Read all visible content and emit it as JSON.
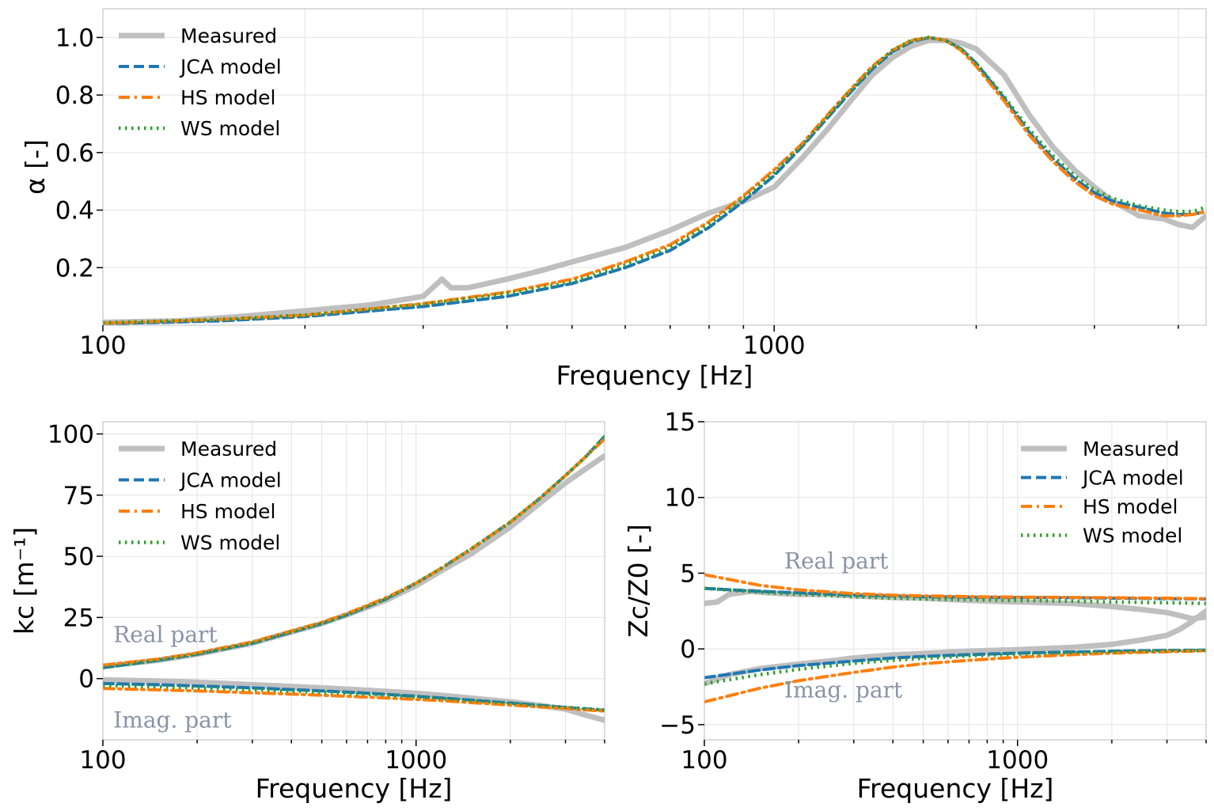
{
  "colors": {
    "measured": "#bfbfbf",
    "jca": "#1f77b4",
    "hs": "#ff7f0e",
    "ws": "#2ca02c",
    "annotation": "#8a94a6"
  },
  "legend": [
    "Measured",
    "JCA model",
    "HS model",
    "WS model"
  ],
  "chart_data": [
    {
      "type": "line",
      "id": "alpha",
      "xlabel": "Frequency [Hz]",
      "ylabel": "α [-]",
      "xscale": "log",
      "xlim": [
        100,
        4400
      ],
      "ylim": [
        0,
        1.1
      ],
      "xticks": [
        100,
        1000
      ],
      "xtick_labels": [
        "100",
        "1000"
      ],
      "yticks": [
        0.2,
        0.4,
        0.6,
        0.8,
        1.0
      ],
      "ytick_labels": [
        "0.2",
        "0.4",
        "0.6",
        "0.8",
        "1.0"
      ],
      "grid": true,
      "legend_position": "top-left",
      "series": [
        {
          "name": "Measured",
          "style": "solid",
          "x": [
            100,
            130,
            160,
            200,
            250,
            300,
            320,
            330,
            350,
            400,
            450,
            500,
            600,
            700,
            800,
            900,
            1000,
            1100,
            1200,
            1300,
            1400,
            1500,
            1600,
            1700,
            1800,
            1900,
            2000,
            2200,
            2400,
            2600,
            2800,
            3000,
            3200,
            3500,
            3800,
            4000,
            4200,
            4400
          ],
          "y": [
            0.01,
            0.015,
            0.03,
            0.05,
            0.07,
            0.1,
            0.16,
            0.13,
            0.13,
            0.16,
            0.19,
            0.22,
            0.27,
            0.33,
            0.39,
            0.43,
            0.48,
            0.58,
            0.68,
            0.78,
            0.87,
            0.93,
            0.97,
            0.99,
            0.99,
            0.98,
            0.96,
            0.87,
            0.73,
            0.62,
            0.54,
            0.48,
            0.43,
            0.38,
            0.37,
            0.35,
            0.34,
            0.38
          ]
        },
        {
          "name": "JCA model",
          "style": "dashed",
          "x": [
            100,
            150,
            200,
            300,
            400,
            500,
            600,
            700,
            800,
            900,
            1000,
            1100,
            1200,
            1300,
            1400,
            1500,
            1600,
            1700,
            1800,
            1900,
            2000,
            2200,
            2400,
            2600,
            2800,
            3000,
            3200,
            3500,
            3800,
            4000,
            4200,
            4400
          ],
          "y": [
            0.005,
            0.015,
            0.03,
            0.065,
            0.1,
            0.145,
            0.2,
            0.26,
            0.34,
            0.43,
            0.52,
            0.62,
            0.72,
            0.81,
            0.89,
            0.95,
            0.985,
            1.0,
            0.99,
            0.96,
            0.91,
            0.79,
            0.67,
            0.58,
            0.51,
            0.46,
            0.43,
            0.41,
            0.39,
            0.385,
            0.385,
            0.395
          ]
        },
        {
          "name": "HS model",
          "style": "dashdot",
          "x": [
            100,
            150,
            200,
            300,
            400,
            500,
            600,
            700,
            800,
            900,
            1000,
            1100,
            1200,
            1300,
            1400,
            1500,
            1600,
            1700,
            1800,
            1900,
            2000,
            2200,
            2400,
            2600,
            2800,
            3000,
            3200,
            3500,
            3800,
            4000,
            4200,
            4400
          ],
          "y": [
            0.007,
            0.02,
            0.035,
            0.075,
            0.115,
            0.16,
            0.22,
            0.28,
            0.36,
            0.45,
            0.54,
            0.63,
            0.73,
            0.82,
            0.9,
            0.955,
            0.99,
            1.0,
            0.99,
            0.955,
            0.9,
            0.78,
            0.66,
            0.57,
            0.5,
            0.45,
            0.42,
            0.4,
            0.38,
            0.38,
            0.385,
            0.395
          ]
        },
        {
          "name": "WS model",
          "style": "dotted",
          "x": [
            100,
            150,
            200,
            300,
            400,
            500,
            600,
            700,
            800,
            900,
            1000,
            1100,
            1200,
            1300,
            1400,
            1500,
            1600,
            1700,
            1800,
            1900,
            2000,
            2200,
            2400,
            2600,
            2800,
            3000,
            3200,
            3500,
            3800,
            4000,
            4200,
            4400
          ],
          "y": [
            0.008,
            0.02,
            0.035,
            0.072,
            0.11,
            0.15,
            0.21,
            0.27,
            0.35,
            0.44,
            0.53,
            0.625,
            0.725,
            0.815,
            0.895,
            0.955,
            0.99,
            1.0,
            0.99,
            0.96,
            0.91,
            0.795,
            0.68,
            0.59,
            0.52,
            0.47,
            0.44,
            0.415,
            0.4,
            0.395,
            0.395,
            0.41
          ]
        }
      ]
    },
    {
      "type": "line",
      "id": "kc",
      "xlabel": "Frequency [Hz]",
      "ylabel": "kc [m⁻¹]",
      "xscale": "log",
      "xlim": [
        100,
        4000
      ],
      "ylim": [
        -25,
        105
      ],
      "xticks": [
        100,
        1000
      ],
      "xtick_labels": [
        "100",
        "1000"
      ],
      "yticks": [
        0,
        25,
        50,
        75,
        100
      ],
      "ytick_labels": [
        "0",
        "25",
        "50",
        "75",
        "100"
      ],
      "grid": true,
      "legend_position": "top-left",
      "annotations": [
        {
          "text": "Real part",
          "x": 108,
          "y": 15
        },
        {
          "text": "Imag. part",
          "x": 108,
          "y": -20
        }
      ],
      "series": [
        {
          "name": "Measured",
          "part": "real",
          "style": "solid",
          "x": [
            100,
            150,
            200,
            300,
            400,
            500,
            600,
            800,
            1000,
            1200,
            1500,
            2000,
            2500,
            3000,
            3500,
            4000
          ],
          "y": [
            5,
            7.5,
            10,
            14.5,
            19,
            22.5,
            26,
            32,
            38,
            44,
            51,
            62,
            72,
            80,
            86,
            91
          ]
        },
        {
          "name": "JCA model",
          "part": "real",
          "style": "dashed",
          "x": [
            100,
            150,
            200,
            300,
            400,
            500,
            600,
            800,
            1000,
            1200,
            1500,
            2000,
            2500,
            3000,
            3500,
            4000
          ],
          "y": [
            4.5,
            7.5,
            10,
            14.5,
            19,
            22.5,
            26,
            32.5,
            39,
            45,
            53,
            64,
            74,
            83,
            91,
            99
          ]
        },
        {
          "name": "HS model",
          "part": "real",
          "style": "dashdot",
          "x": [
            100,
            150,
            200,
            300,
            400,
            500,
            600,
            800,
            1000,
            1200,
            1500,
            2000,
            2500,
            3000,
            3500,
            4000
          ],
          "y": [
            5.5,
            8,
            10.5,
            15,
            19.5,
            23,
            26.5,
            33,
            39,
            45,
            53,
            64,
            74,
            83,
            91,
            98
          ]
        },
        {
          "name": "WS model",
          "part": "real",
          "style": "dotted",
          "x": [
            100,
            150,
            200,
            300,
            400,
            500,
            600,
            800,
            1000,
            1200,
            1500,
            2000,
            2500,
            3000,
            3500,
            4000
          ],
          "y": [
            4.5,
            7.5,
            10,
            14.5,
            19,
            22.5,
            26,
            32.5,
            39,
            45,
            53,
            64,
            74,
            83,
            91,
            99
          ]
        },
        {
          "name": "Measured",
          "part": "imag",
          "style": "solid",
          "x": [
            100,
            150,
            200,
            300,
            400,
            500,
            600,
            800,
            1000,
            1200,
            1500,
            2000,
            2500,
            3000,
            3500,
            4000
          ],
          "y": [
            -0.5,
            -1,
            -1.5,
            -2.5,
            -3.2,
            -3.8,
            -4.3,
            -5.2,
            -6,
            -6.8,
            -8,
            -9.5,
            -11,
            -12.5,
            -15,
            -17
          ]
        },
        {
          "name": "JCA model",
          "part": "imag",
          "style": "dashed",
          "x": [
            100,
            150,
            200,
            300,
            400,
            500,
            600,
            800,
            1000,
            1200,
            1500,
            2000,
            2500,
            3000,
            3500,
            4000
          ],
          "y": [
            -2,
            -2.5,
            -3,
            -3.8,
            -4.5,
            -5,
            -5.5,
            -6.4,
            -7.2,
            -7.9,
            -8.8,
            -10,
            -11,
            -11.8,
            -12.4,
            -13
          ]
        },
        {
          "name": "HS model",
          "part": "imag",
          "style": "dashdot",
          "x": [
            100,
            150,
            200,
            300,
            400,
            500,
            600,
            800,
            1000,
            1200,
            1500,
            2000,
            2500,
            3000,
            3500,
            4000
          ],
          "y": [
            -4,
            -4.6,
            -5,
            -5.8,
            -6.3,
            -6.8,
            -7.2,
            -7.9,
            -8.5,
            -9,
            -9.8,
            -10.8,
            -11.6,
            -12.2,
            -12.8,
            -13.3
          ]
        },
        {
          "name": "WS model",
          "part": "imag",
          "style": "dotted",
          "x": [
            100,
            150,
            200,
            300,
            400,
            500,
            600,
            800,
            1000,
            1200,
            1500,
            2000,
            2500,
            3000,
            3500,
            4000
          ],
          "y": [
            -2.8,
            -3.3,
            -3.8,
            -4.5,
            -5.1,
            -5.6,
            -6,
            -6.8,
            -7.5,
            -8.1,
            -9,
            -10.1,
            -11,
            -11.7,
            -12.3,
            -12.8
          ]
        }
      ]
    },
    {
      "type": "line",
      "id": "zc",
      "xlabel": "Frequency [Hz]",
      "ylabel": "Zc/Z0 [-]",
      "xscale": "log",
      "xlim": [
        100,
        4000
      ],
      "ylim": [
        -6,
        15
      ],
      "xticks": [
        100,
        1000
      ],
      "xtick_labels": [
        "100",
        "1000"
      ],
      "yticks": [
        -5,
        0,
        5,
        10,
        15
      ],
      "ytick_labels": [
        "−5",
        "0",
        "5",
        "10",
        "15"
      ],
      "grid": true,
      "legend_position": "top-right",
      "annotations": [
        {
          "text": "Real part",
          "x": 180,
          "y": 5.3
        },
        {
          "text": "Imag. part",
          "x": 180,
          "y": -3.2
        }
      ],
      "series": [
        {
          "name": "Measured",
          "part": "real",
          "style": "solid",
          "x": [
            100,
            110,
            120,
            140,
            160,
            200,
            250,
            300,
            400,
            500,
            700,
            1000,
            1500,
            2000,
            2500,
            3000,
            3300,
            3600,
            4000
          ],
          "y": [
            3,
            3.1,
            3.6,
            3.8,
            3.7,
            3.6,
            3.6,
            3.5,
            3.4,
            3.35,
            3.2,
            3.1,
            3,
            2.8,
            2.6,
            2.4,
            2.2,
            2,
            2.1
          ]
        },
        {
          "name": "JCA model",
          "part": "real",
          "style": "dashed",
          "x": [
            100,
            150,
            200,
            300,
            400,
            500,
            700,
            1000,
            1500,
            2000,
            3000,
            4000
          ],
          "y": [
            4,
            3.8,
            3.7,
            3.55,
            3.5,
            3.45,
            3.42,
            3.4,
            3.38,
            3.35,
            3.32,
            3.3
          ]
        },
        {
          "name": "HS model",
          "part": "real",
          "style": "dashdot",
          "x": [
            100,
            150,
            200,
            300,
            400,
            500,
            700,
            1000,
            1500,
            2000,
            3000,
            4000
          ],
          "y": [
            4.9,
            4.2,
            3.9,
            3.65,
            3.55,
            3.5,
            3.45,
            3.42,
            3.4,
            3.38,
            3.35,
            3.32
          ]
        },
        {
          "name": "WS model",
          "part": "real",
          "style": "dotted",
          "x": [
            100,
            150,
            200,
            300,
            400,
            500,
            700,
            1000,
            1500,
            2000,
            3000,
            4000
          ],
          "y": [
            4,
            3.75,
            3.6,
            3.45,
            3.35,
            3.3,
            3.25,
            3.2,
            3.15,
            3.1,
            3.05,
            3
          ]
        },
        {
          "name": "Measured",
          "part": "imag",
          "style": "solid",
          "x": [
            100,
            120,
            150,
            200,
            250,
            300,
            400,
            500,
            700,
            1000,
            1500,
            2000,
            2500,
            3000,
            3300,
            3600,
            4000
          ],
          "y": [
            -2.3,
            -1.7,
            -1.3,
            -1,
            -0.8,
            -0.6,
            -0.4,
            -0.3,
            -0.15,
            -0.05,
            0.1,
            0.3,
            0.6,
            0.9,
            1.3,
            1.8,
            2.5
          ]
        },
        {
          "name": "JCA model",
          "part": "imag",
          "style": "dashed",
          "x": [
            100,
            150,
            200,
            300,
            400,
            500,
            700,
            1000,
            1500,
            2000,
            3000,
            4000
          ],
          "y": [
            -1.9,
            -1.4,
            -1.1,
            -0.8,
            -0.6,
            -0.5,
            -0.38,
            -0.28,
            -0.2,
            -0.15,
            -0.1,
            -0.08
          ]
        },
        {
          "name": "HS model",
          "part": "imag",
          "style": "dashdot",
          "x": [
            100,
            150,
            200,
            300,
            400,
            500,
            700,
            1000,
            1500,
            2000,
            3000,
            4000
          ],
          "y": [
            -3.5,
            -2.6,
            -2.1,
            -1.55,
            -1.2,
            -0.98,
            -0.75,
            -0.55,
            -0.38,
            -0.28,
            -0.18,
            -0.13
          ]
        },
        {
          "name": "WS model",
          "part": "imag",
          "style": "dotted",
          "x": [
            100,
            150,
            200,
            300,
            400,
            500,
            700,
            1000,
            1500,
            2000,
            3000,
            4000
          ],
          "y": [
            -2.3,
            -1.7,
            -1.35,
            -0.95,
            -0.75,
            -0.62,
            -0.46,
            -0.34,
            -0.24,
            -0.18,
            -0.12,
            -0.09
          ]
        }
      ]
    }
  ]
}
